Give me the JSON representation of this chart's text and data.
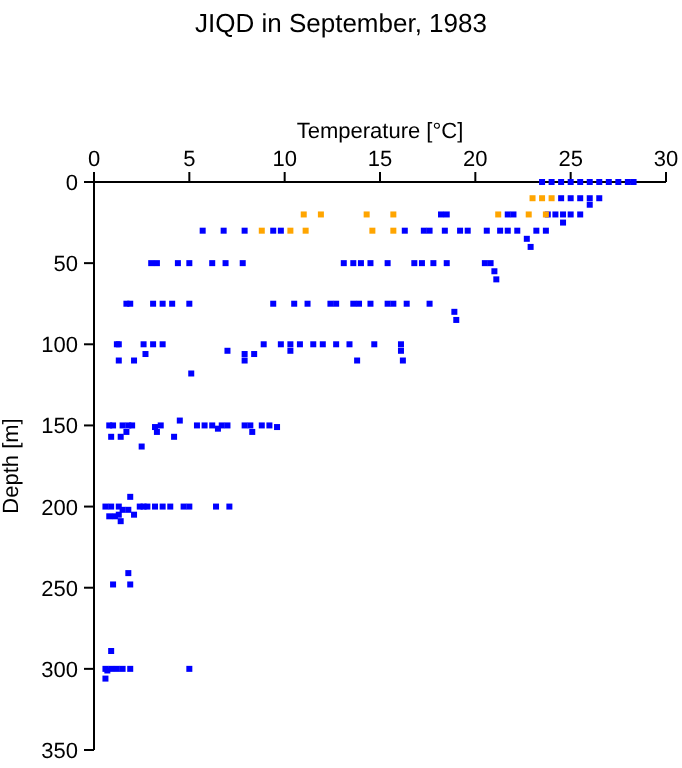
{
  "chart_data": {
    "type": "scatter",
    "title": "JIQD in September, 1983",
    "xlabel": "Temperature [°C]",
    "ylabel": "Depth [m]",
    "xlim": [
      0,
      30
    ],
    "xticks": [
      0,
      5,
      10,
      15,
      20,
      25,
      30
    ],
    "ylim": [
      350,
      0
    ],
    "yticks": [
      0,
      50,
      100,
      150,
      200,
      250,
      300,
      350
    ],
    "grid": false,
    "marker": "square",
    "series": [
      {
        "color": "#0000ff",
        "x": [
          23.5,
          24,
          24.5,
          25,
          25.5,
          26,
          26.5,
          27,
          27.5,
          28,
          28.3,
          24.5,
          25,
          25.5,
          26,
          26.5,
          26,
          18.2,
          18.5,
          21.7,
          22.0,
          23.8,
          24.2,
          24.6,
          25,
          25.5,
          24.6,
          5.7,
          6.8,
          7.9,
          9.4,
          9.8,
          16.3,
          17.3,
          17.6,
          18.4,
          19.2,
          19.6,
          20.6,
          21.3,
          21.7,
          22.2,
          23.2,
          23.7,
          22.7,
          22.9,
          3.0,
          3.3,
          4.4,
          5.0,
          6.2,
          6.9,
          7.8,
          13.1,
          13.6,
          14.0,
          14.5,
          15.4,
          16.8,
          17.2,
          17.8,
          18.5,
          20.5,
          20.8,
          21.0,
          21.1,
          1.7,
          1.9,
          3.1,
          3.6,
          4.1,
          5.0,
          9.4,
          10.5,
          11.2,
          12.4,
          12.7,
          13.6,
          13.9,
          14.5,
          15.4,
          15.7,
          16.4,
          17.6,
          18.9,
          19.0,
          1.2,
          1.3,
          2.6,
          3.1,
          3.6,
          8.9,
          9.8,
          10.3,
          10.8,
          11.5,
          12.0,
          12.7,
          13.4,
          14.7,
          16.1,
          7.0,
          10.3,
          16.1,
          2.7,
          7.9,
          8.4,
          1.3,
          2.1,
          7.9,
          13.8,
          16.2,
          5.1,
          4.5,
          0.8,
          1.0,
          1.5,
          1.8,
          2.0,
          3.5,
          5.4,
          5.8,
          6.2,
          6.7,
          7.0,
          7.9,
          8.2,
          8.8,
          9.2,
          3.2,
          9.6,
          6.5,
          1.7,
          3.3,
          8.3,
          0.9,
          1.4,
          4.2,
          2.5,
          1.9,
          0.6,
          0.9,
          1.3,
          2.4,
          2.6,
          2.8,
          3.2,
          3.6,
          4.0,
          4.7,
          5.0,
          6.4,
          7.1,
          1.5,
          1.8,
          1.3,
          2.1,
          0.8,
          1.1,
          1.4,
          1.8,
          1.0,
          1.9,
          0.9,
          0.6,
          0.9,
          1.2,
          1.5,
          1.9,
          5.0,
          0.7,
          0.6
        ],
        "values": [
          0,
          0,
          0,
          0,
          0,
          0,
          0,
          0,
          0,
          0,
          0,
          10,
          10,
          10,
          10,
          10,
          14,
          20,
          20,
          20,
          20,
          20,
          20,
          20,
          20,
          20,
          25,
          30,
          30,
          30,
          30,
          30,
          30,
          30,
          30,
          30,
          30,
          30,
          30,
          30,
          30,
          30,
          30,
          30,
          35,
          40,
          50,
          50,
          50,
          50,
          50,
          50,
          50,
          50,
          50,
          50,
          50,
          50,
          50,
          50,
          50,
          50,
          50,
          50,
          55,
          60,
          75,
          75,
          75,
          75,
          75,
          75,
          75,
          75,
          75,
          75,
          75,
          75,
          75,
          75,
          75,
          75,
          75,
          75,
          80,
          85,
          100,
          100,
          100,
          100,
          100,
          100,
          100,
          100,
          100,
          100,
          100,
          100,
          100,
          100,
          100,
          104,
          104,
          104,
          106,
          106,
          106,
          110,
          110,
          110,
          110,
          110,
          118,
          147,
          150,
          150,
          150,
          150,
          150,
          150,
          150,
          150,
          150,
          150,
          150,
          150,
          150,
          150,
          150,
          151,
          151,
          152,
          154,
          154,
          154,
          157,
          157,
          157,
          163,
          194,
          200,
          200,
          200,
          200,
          200,
          200,
          200,
          200,
          200,
          200,
          200,
          200,
          200,
          202,
          202,
          205,
          205,
          206,
          206,
          209,
          241,
          248,
          248,
          289,
          300,
          300,
          300,
          300,
          300,
          300,
          301,
          306
        ]
      },
      {
        "color": "#ffa500",
        "x": [
          23,
          23.5,
          24,
          11.0,
          11.9,
          14.3,
          15.7,
          21.2,
          22.8,
          23.7,
          8.8,
          10.3,
          11.1,
          14.6,
          15.7
        ],
        "values": [
          10,
          10,
          10,
          20,
          20,
          20,
          20,
          20,
          20,
          20,
          30,
          30,
          30,
          30,
          30
        ]
      }
    ]
  }
}
